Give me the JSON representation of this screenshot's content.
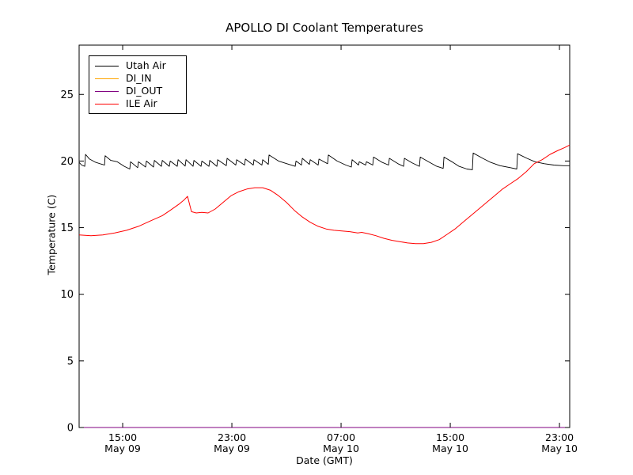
{
  "figure": {
    "title": "APOLLO DI Coolant Temperatures",
    "xlabel": "Date (GMT)",
    "ylabel": "Temperature (C)"
  },
  "chart_data": {
    "type": "line",
    "title": "APOLLO DI Coolant Temperatures",
    "xlabel": "Date (GMT)",
    "ylabel": "Temperature (C)",
    "x_unit": "hours since May 09 00:00 GMT",
    "xlim": [
      11.81,
      47.75
    ],
    "ylim": [
      0,
      28.7
    ],
    "grid": false,
    "legend_position": "upper-left",
    "tick_direction": "in",
    "y_ticks": [
      0,
      5,
      10,
      15,
      20,
      25
    ],
    "x_ticks": [
      {
        "hour": 15,
        "line1": "15:00",
        "line2": "May 09"
      },
      {
        "hour": 23,
        "line1": "23:00",
        "line2": "May 09"
      },
      {
        "hour": 31,
        "line1": "07:00",
        "line2": "May 10"
      },
      {
        "hour": 39,
        "line1": "15:00",
        "line2": "May 10"
      },
      {
        "hour": 47,
        "line1": "23:00",
        "line2": "May 10"
      }
    ],
    "series": [
      {
        "name": "Utah Air",
        "color": "#000000",
        "points": [
          [
            11.81,
            19.9
          ],
          [
            11.99,
            19.7
          ],
          [
            12.22,
            19.6
          ],
          [
            12.28,
            20.5
          ],
          [
            12.57,
            20.15
          ],
          [
            13.03,
            19.9
          ],
          [
            13.49,
            19.75
          ],
          [
            13.67,
            19.7
          ],
          [
            13.72,
            20.4
          ],
          [
            14.13,
            20.05
          ],
          [
            14.59,
            19.95
          ],
          [
            15.12,
            19.6
          ],
          [
            15.52,
            19.4
          ],
          [
            15.58,
            19.95
          ],
          [
            16.1,
            19.5
          ],
          [
            16.16,
            19.95
          ],
          [
            16.68,
            19.55
          ],
          [
            16.74,
            20.0
          ],
          [
            17.26,
            19.55
          ],
          [
            17.32,
            20.05
          ],
          [
            17.84,
            19.6
          ],
          [
            17.9,
            20.05
          ],
          [
            18.42,
            19.6
          ],
          [
            18.48,
            20.0
          ],
          [
            19.0,
            19.6
          ],
          [
            19.06,
            20.1
          ],
          [
            19.58,
            19.62
          ],
          [
            19.64,
            20.1
          ],
          [
            20.16,
            19.6
          ],
          [
            20.22,
            20.05
          ],
          [
            20.74,
            19.6
          ],
          [
            20.8,
            20.0
          ],
          [
            21.32,
            19.6
          ],
          [
            21.38,
            20.05
          ],
          [
            21.9,
            19.6
          ],
          [
            21.96,
            20.1
          ],
          [
            22.59,
            19.65
          ],
          [
            22.65,
            20.2
          ],
          [
            23.29,
            19.7
          ],
          [
            23.35,
            20.1
          ],
          [
            23.93,
            19.7
          ],
          [
            23.99,
            20.15
          ],
          [
            24.57,
            19.7
          ],
          [
            24.62,
            20.1
          ],
          [
            25.2,
            19.7
          ],
          [
            25.26,
            20.1
          ],
          [
            25.67,
            19.75
          ],
          [
            25.72,
            20.45
          ],
          [
            26.42,
            20.0
          ],
          [
            27.17,
            19.75
          ],
          [
            27.64,
            19.6
          ],
          [
            27.7,
            20.0
          ],
          [
            28.1,
            19.7
          ],
          [
            28.16,
            20.2
          ],
          [
            28.68,
            19.75
          ],
          [
            28.74,
            20.1
          ],
          [
            29.32,
            19.7
          ],
          [
            29.38,
            20.15
          ],
          [
            30.01,
            19.8
          ],
          [
            30.07,
            20.45
          ],
          [
            30.71,
            20.0
          ],
          [
            31.35,
            19.7
          ],
          [
            31.75,
            19.55
          ],
          [
            31.81,
            20.1
          ],
          [
            32.28,
            19.7
          ],
          [
            32.33,
            19.95
          ],
          [
            32.8,
            19.7
          ],
          [
            32.86,
            19.95
          ],
          [
            33.32,
            19.7
          ],
          [
            33.38,
            20.3
          ],
          [
            34.01,
            19.9
          ],
          [
            34.48,
            19.7
          ],
          [
            34.54,
            20.2
          ],
          [
            35.17,
            19.8
          ],
          [
            35.58,
            19.6
          ],
          [
            35.64,
            20.2
          ],
          [
            36.22,
            19.85
          ],
          [
            36.74,
            19.6
          ],
          [
            36.8,
            20.3
          ],
          [
            37.49,
            19.9
          ],
          [
            38.01,
            19.6
          ],
          [
            38.48,
            19.45
          ],
          [
            38.54,
            20.3
          ],
          [
            39.12,
            19.95
          ],
          [
            39.64,
            19.6
          ],
          [
            40.22,
            19.4
          ],
          [
            40.62,
            19.35
          ],
          [
            40.68,
            20.6
          ],
          [
            41.38,
            20.2
          ],
          [
            41.96,
            19.9
          ],
          [
            42.65,
            19.65
          ],
          [
            43.41,
            19.5
          ],
          [
            43.87,
            19.4
          ],
          [
            43.93,
            20.55
          ],
          [
            44.62,
            20.2
          ],
          [
            45.2,
            19.95
          ],
          [
            45.9,
            19.8
          ],
          [
            46.59,
            19.7
          ],
          [
            47.29,
            19.65
          ],
          [
            47.75,
            19.65
          ]
        ]
      },
      {
        "name": "DI_IN",
        "color": "#ffa500",
        "points": [
          [
            11.81,
            0
          ],
          [
            47.75,
            0
          ]
        ]
      },
      {
        "name": "DI_OUT",
        "color": "#800080",
        "points": [
          [
            11.81,
            0
          ],
          [
            47.75,
            0
          ]
        ]
      },
      {
        "name": "ILE Air",
        "color": "#ff0000",
        "points": [
          [
            11.81,
            14.45
          ],
          [
            12.68,
            14.4
          ],
          [
            13.55,
            14.45
          ],
          [
            14.42,
            14.6
          ],
          [
            15.29,
            14.8
          ],
          [
            16.16,
            15.1
          ],
          [
            17.03,
            15.5
          ],
          [
            17.9,
            15.9
          ],
          [
            18.48,
            16.3
          ],
          [
            19.17,
            16.8
          ],
          [
            19.52,
            17.1
          ],
          [
            19.75,
            17.35
          ],
          [
            20.04,
            16.2
          ],
          [
            20.39,
            16.1
          ],
          [
            20.8,
            16.15
          ],
          [
            21.26,
            16.1
          ],
          [
            21.78,
            16.4
          ],
          [
            22.36,
            16.9
          ],
          [
            22.94,
            17.4
          ],
          [
            23.52,
            17.7
          ],
          [
            24.1,
            17.9
          ],
          [
            24.68,
            18.0
          ],
          [
            25.26,
            18.0
          ],
          [
            25.84,
            17.8
          ],
          [
            26.42,
            17.4
          ],
          [
            27.0,
            16.9
          ],
          [
            27.58,
            16.3
          ],
          [
            28.16,
            15.8
          ],
          [
            28.74,
            15.4
          ],
          [
            29.32,
            15.1
          ],
          [
            29.9,
            14.9
          ],
          [
            30.48,
            14.8
          ],
          [
            31.06,
            14.75
          ],
          [
            31.64,
            14.7
          ],
          [
            32.22,
            14.6
          ],
          [
            32.51,
            14.65
          ],
          [
            32.97,
            14.55
          ],
          [
            33.55,
            14.4
          ],
          [
            34.13,
            14.2
          ],
          [
            34.71,
            14.05
          ],
          [
            35.29,
            13.95
          ],
          [
            35.87,
            13.85
          ],
          [
            36.45,
            13.8
          ],
          [
            37.03,
            13.8
          ],
          [
            37.61,
            13.9
          ],
          [
            38.19,
            14.1
          ],
          [
            38.77,
            14.5
          ],
          [
            39.35,
            14.9
          ],
          [
            39.93,
            15.4
          ],
          [
            40.51,
            15.9
          ],
          [
            41.09,
            16.4
          ],
          [
            41.67,
            16.9
          ],
          [
            42.25,
            17.4
          ],
          [
            42.83,
            17.9
          ],
          [
            43.41,
            18.3
          ],
          [
            43.99,
            18.7
          ],
          [
            44.57,
            19.2
          ],
          [
            45.15,
            19.8
          ],
          [
            45.73,
            20.1
          ],
          [
            46.31,
            20.5
          ],
          [
            46.9,
            20.8
          ],
          [
            47.36,
            21.0
          ],
          [
            47.75,
            21.2
          ]
        ]
      }
    ]
  }
}
